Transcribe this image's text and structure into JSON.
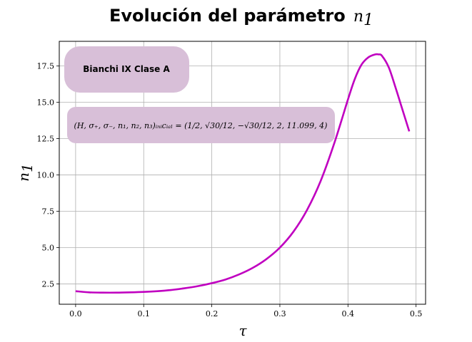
{
  "chart_data": {
    "type": "line",
    "title": "Evolución del parámetro",
    "title_symbol": "n",
    "title_symbol_sub": "1",
    "xlabel": "τ",
    "ylabel": "n",
    "ylabel_sub": "1",
    "xlim": [
      -0.024,
      0.514
    ],
    "ylim": [
      1.1,
      19.2
    ],
    "xticks": [
      0.0,
      0.1,
      0.2,
      0.3,
      0.4,
      0.5
    ],
    "xtick_labels": [
      "0.0",
      "0.1",
      "0.2",
      "0.3",
      "0.4",
      "0.5"
    ],
    "yticks": [
      2.5,
      5.0,
      7.5,
      10.0,
      12.5,
      15.0,
      17.5
    ],
    "ytick_labels": [
      "2.5",
      "5.0",
      "7.5",
      "10.0",
      "12.5",
      "15.0",
      "17.5"
    ],
    "grid": true,
    "series": [
      {
        "color": "#c000c0",
        "x": [
          0.0,
          0.02,
          0.04,
          0.06,
          0.08,
          0.1,
          0.12,
          0.14,
          0.16,
          0.18,
          0.2,
          0.22,
          0.24,
          0.26,
          0.28,
          0.3,
          0.32,
          0.34,
          0.36,
          0.38,
          0.4,
          0.41,
          0.42,
          0.43,
          0.44,
          0.445,
          0.45,
          0.46,
          0.47,
          0.48,
          0.49
        ],
        "y": [
          2.0,
          1.92,
          1.9,
          1.9,
          1.92,
          1.95,
          2.0,
          2.08,
          2.2,
          2.35,
          2.55,
          2.8,
          3.15,
          3.6,
          4.2,
          5.0,
          6.1,
          7.6,
          9.6,
          12.2,
          15.2,
          16.6,
          17.6,
          18.1,
          18.3,
          18.3,
          18.2,
          17.4,
          16.0,
          14.5,
          13.0
        ]
      }
    ],
    "annotations": [
      {
        "text": "Bianchi IX Clase A",
        "background": "#d8bfd8"
      },
      {
        "text": "(H, σ₊, σ₋, n₁, n₂, n₃)ᵢₙᵢcᵢₐₗ = (1/2, √30/12, −√30/12, 2, 11.099, 4)",
        "background": "#d8bfd8"
      }
    ]
  }
}
